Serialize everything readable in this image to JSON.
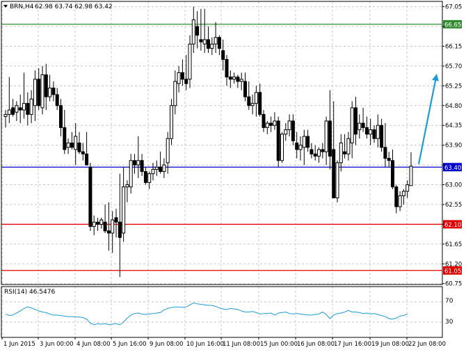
{
  "header": {
    "symbol_label": "BRN,H4",
    "ohlc_label": "62.98 63.74 62.98 63.42"
  },
  "indicator": {
    "label": "RSI(14) 46.5476",
    "ticks": [
      "70",
      "30"
    ],
    "levels": [
      70,
      30
    ],
    "ylim": [
      0,
      100
    ]
  },
  "chart_data": {
    "type": "candlestick",
    "ylim": [
      60.75,
      67.15
    ],
    "y_ticks": [
      "67.05",
      "66.60",
      "66.15",
      "65.70",
      "65.25",
      "64.80",
      "64.35",
      "63.90",
      "63.45",
      "63.00",
      "62.55",
      "62.10",
      "61.65",
      "61.20",
      "60.75"
    ],
    "x_ticks": [
      "1 Jun 2015",
      "3 Jun 00:00",
      "4 Jun 08:00",
      "5 Jun 16:00",
      "9 Jun 08:00",
      "10 Jun 16:00",
      "11 Jun 08:00",
      "15 Jun 00:00",
      "16 Jun 08:00",
      "17 Jun 16:00",
      "19 Jun 08:00",
      "22 Jun 08:00"
    ],
    "grid": true,
    "horizontal_lines": [
      {
        "label": "66.65",
        "value": 66.65,
        "color": "#2e8b2e"
      },
      {
        "label": "63.40",
        "value": 63.4,
        "color": "#0000cc"
      },
      {
        "label": "62.10",
        "value": 62.1,
        "color": "#e00000"
      },
      {
        "label": "61.05",
        "value": 61.05,
        "color": "#e00000"
      }
    ],
    "arrow": {
      "from": [
        116,
        63.45
      ],
      "to": [
        121,
        65.55
      ],
      "color": "#1e9bd7"
    },
    "candles": [
      [
        64.55,
        64.7,
        64.3,
        64.6
      ],
      [
        64.6,
        65.45,
        64.4,
        64.7
      ],
      [
        64.75,
        64.95,
        64.55,
        64.6
      ],
      [
        64.65,
        64.9,
        64.45,
        64.8
      ],
      [
        64.75,
        65.05,
        64.4,
        64.7
      ],
      [
        64.7,
        65.55,
        64.5,
        64.85
      ],
      [
        64.85,
        65.1,
        64.35,
        64.6
      ],
      [
        64.6,
        65.15,
        64.4,
        64.95
      ],
      [
        64.8,
        65.6,
        64.45,
        65.4
      ],
      [
        65.4,
        65.65,
        64.7,
        64.8
      ],
      [
        64.75,
        65.7,
        64.6,
        65.5
      ],
      [
        65.5,
        65.75,
        64.7,
        65.0
      ],
      [
        65.0,
        65.5,
        64.9,
        65.2
      ],
      [
        65.2,
        65.35,
        64.9,
        65.05
      ],
      [
        65.05,
        65.2,
        64.7,
        64.8
      ],
      [
        64.8,
        64.95,
        64.1,
        64.3
      ],
      [
        64.3,
        64.7,
        63.7,
        63.8
      ],
      [
        63.85,
        64.05,
        63.7,
        63.95
      ],
      [
        63.95,
        64.2,
        63.8,
        63.85
      ],
      [
        63.8,
        64.4,
        63.45,
        64.1
      ],
      [
        63.95,
        64.2,
        63.7,
        63.75
      ],
      [
        63.75,
        63.95,
        63.55,
        63.7
      ],
      [
        63.7,
        64.2,
        63.5,
        63.45
      ],
      [
        63.4,
        63.5,
        61.95,
        62.05
      ],
      [
        62.05,
        62.3,
        61.85,
        62.15
      ],
      [
        62.15,
        62.25,
        61.95,
        62.1
      ],
      [
        62.1,
        62.25,
        62.0,
        62.2
      ],
      [
        62.15,
        62.55,
        61.9,
        61.95
      ],
      [
        61.95,
        62.6,
        61.5,
        61.9
      ],
      [
        61.9,
        62.4,
        61.45,
        62.2
      ],
      [
        62.25,
        62.45,
        61.8,
        62.15
      ],
      [
        62.15,
        63.25,
        60.9,
        61.8
      ],
      [
        61.9,
        63.4,
        61.7,
        62.95
      ],
      [
        62.95,
        63.1,
        62.6,
        63.0
      ],
      [
        62.95,
        63.7,
        62.8,
        63.55
      ],
      [
        63.55,
        63.7,
        63.25,
        63.45
      ],
      [
        63.45,
        64.1,
        63.15,
        63.55
      ],
      [
        63.55,
        63.7,
        63.2,
        63.3
      ],
      [
        63.3,
        63.4,
        63.0,
        63.05
      ],
      [
        63.05,
        63.3,
        62.9,
        63.25
      ],
      [
        63.25,
        63.5,
        63.1,
        63.35
      ],
      [
        63.35,
        63.55,
        63.2,
        63.4
      ],
      [
        63.4,
        63.75,
        63.25,
        63.3
      ],
      [
        63.3,
        63.6,
        63.15,
        63.45
      ],
      [
        63.5,
        64.2,
        63.25,
        64.05
      ],
      [
        64.05,
        64.95,
        63.9,
        64.8
      ],
      [
        64.8,
        65.6,
        64.6,
        65.35
      ],
      [
        65.3,
        65.7,
        65.1,
        65.55
      ],
      [
        65.55,
        65.85,
        65.25,
        65.4
      ],
      [
        65.4,
        65.95,
        65.15,
        65.3
      ],
      [
        65.4,
        66.4,
        65.2,
        66.2
      ],
      [
        66.2,
        67.05,
        66.0,
        66.75
      ],
      [
        66.6,
        66.95,
        66.1,
        66.4
      ],
      [
        66.3,
        67.0,
        66.05,
        66.25
      ],
      [
        66.2,
        67.0,
        66.0,
        66.3
      ],
      [
        66.3,
        66.6,
        66.0,
        66.1
      ],
      [
        66.1,
        66.35,
        65.95,
        66.2
      ],
      [
        66.2,
        66.7,
        66.0,
        66.35
      ],
      [
        66.35,
        66.4,
        65.95,
        66.1
      ],
      [
        66.05,
        66.3,
        65.6,
        65.85
      ],
      [
        65.85,
        65.95,
        65.25,
        65.45
      ],
      [
        65.45,
        65.6,
        65.2,
        65.4
      ],
      [
        65.4,
        65.55,
        65.3,
        65.45
      ],
      [
        65.45,
        65.5,
        65.2,
        65.35
      ],
      [
        65.35,
        65.55,
        65.15,
        65.4
      ],
      [
        65.35,
        65.55,
        64.9,
        65.0
      ],
      [
        65.0,
        65.35,
        64.7,
        64.8
      ],
      [
        64.8,
        65.05,
        64.6,
        64.85
      ],
      [
        64.85,
        65.25,
        64.55,
        65.1
      ],
      [
        65.1,
        65.3,
        64.55,
        64.6
      ],
      [
        64.6,
        64.7,
        64.2,
        64.3
      ],
      [
        64.3,
        64.45,
        64.15,
        64.4
      ],
      [
        64.4,
        64.55,
        64.2,
        64.35
      ],
      [
        64.35,
        64.65,
        64.25,
        64.45
      ],
      [
        64.45,
        64.55,
        63.4,
        63.55
      ],
      [
        63.55,
        64.2,
        63.5,
        64.15
      ],
      [
        64.15,
        64.4,
        64.0,
        64.25
      ],
      [
        64.25,
        64.6,
        64.1,
        64.45
      ],
      [
        64.45,
        64.6,
        63.9,
        64.0
      ],
      [
        63.95,
        64.2,
        63.6,
        63.8
      ],
      [
        63.8,
        64.1,
        63.55,
        63.9
      ],
      [
        63.85,
        64.25,
        63.45,
        64.1
      ],
      [
        64.1,
        64.25,
        63.75,
        63.85
      ],
      [
        63.8,
        63.95,
        63.6,
        63.7
      ],
      [
        63.7,
        63.9,
        63.55,
        63.65
      ],
      [
        63.65,
        63.85,
        63.5,
        63.8
      ],
      [
        63.8,
        63.95,
        63.6,
        63.75
      ],
      [
        63.75,
        64.55,
        63.45,
        64.45
      ],
      [
        64.45,
        65.15,
        63.35,
        63.65
      ],
      [
        63.8,
        64.9,
        62.7,
        62.7
      ],
      [
        62.7,
        63.55,
        62.6,
        63.5
      ],
      [
        63.5,
        64.15,
        63.3,
        63.95
      ],
      [
        63.75,
        64.15,
        63.6,
        63.7
      ],
      [
        63.7,
        64.2,
        63.55,
        64.05
      ],
      [
        63.95,
        64.9,
        63.6,
        64.75
      ],
      [
        64.75,
        65.0,
        63.9,
        64.15
      ],
      [
        64.25,
        64.6,
        64.05,
        64.4
      ],
      [
        64.4,
        64.75,
        64.2,
        64.3
      ],
      [
        64.3,
        64.55,
        64.05,
        64.15
      ],
      [
        64.15,
        64.5,
        63.9,
        64.25
      ],
      [
        64.25,
        64.35,
        63.95,
        64.05
      ],
      [
        64.05,
        64.6,
        63.85,
        64.35
      ],
      [
        64.35,
        64.5,
        63.75,
        63.85
      ],
      [
        63.85,
        64.4,
        63.4,
        63.6
      ],
      [
        63.6,
        63.75,
        63.4,
        63.55
      ],
      [
        63.55,
        63.8,
        62.9,
        62.95
      ],
      [
        62.95,
        63.0,
        62.35,
        62.5
      ],
      [
        62.5,
        62.85,
        62.4,
        62.75
      ],
      [
        62.75,
        62.9,
        62.55,
        62.85
      ],
      [
        62.85,
        63.1,
        62.7,
        63.0
      ],
      [
        62.98,
        63.74,
        62.98,
        63.42
      ]
    ],
    "rsi": [
      46,
      43,
      44,
      48,
      52,
      57,
      60,
      58,
      55,
      52,
      50,
      49,
      46,
      44,
      44,
      43,
      42,
      41,
      41,
      40,
      40,
      39,
      36,
      28,
      25,
      27,
      26,
      27,
      25,
      26,
      27,
      25,
      30,
      38,
      44,
      47,
      48,
      46,
      45,
      46,
      47,
      48,
      49,
      54,
      57,
      59,
      60,
      60,
      59,
      60,
      64,
      68,
      66,
      65,
      64,
      63,
      63,
      61,
      58,
      56,
      55,
      57,
      56,
      55,
      52,
      50,
      50,
      51,
      49,
      46,
      47,
      47,
      48,
      44,
      48,
      49,
      50,
      47,
      46,
      47,
      46,
      45,
      44,
      44,
      45,
      46,
      50,
      45,
      37,
      44,
      47,
      48,
      50,
      53,
      50,
      50,
      49,
      47,
      48,
      46,
      47,
      45,
      43,
      41,
      37,
      36,
      38,
      42,
      43,
      46
    ]
  }
}
